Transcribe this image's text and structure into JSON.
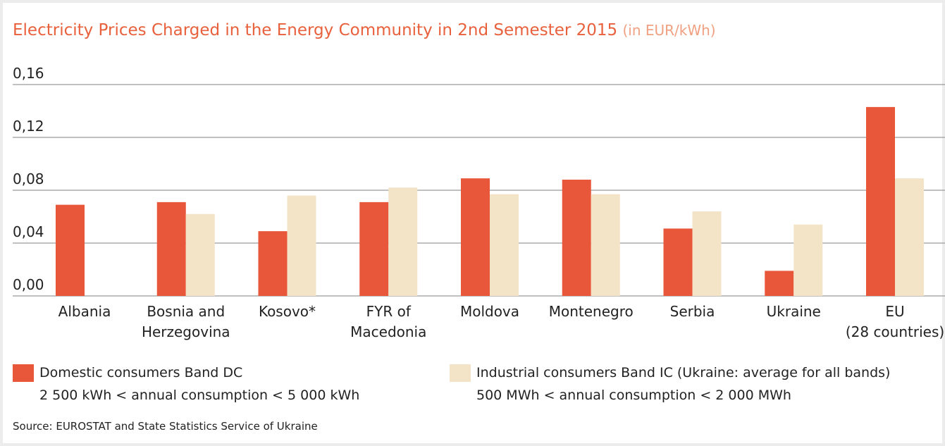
{
  "chart_data": {
    "type": "bar",
    "title": "Electricity Prices Charged in the Energy Community in 2nd Semester 2015",
    "subtitle": "(in EUR/kWh)",
    "categories": [
      "Albania",
      "Bosnia and\nHerzegovina",
      "Kosovo*",
      "FYR of\nMacedonia",
      "Moldova",
      "Montenegro",
      "Serbia",
      "Ukraine",
      "EU\n(28 countries)"
    ],
    "series": [
      {
        "name": "Domestic consumers Band DC",
        "note": "2 500 kWh < annual consumption < 5 000 kWh",
        "color": "#e8573a",
        "values": [
          0.069,
          0.071,
          0.049,
          0.071,
          0.089,
          0.088,
          0.051,
          0.019,
          0.143
        ]
      },
      {
        "name": "Industrial consumers Band IC (Ukraine: average for all bands)",
        "note": "500 MWh < annual consumption < 2 000 MWh",
        "color": "#f3e4c8",
        "values": [
          null,
          0.062,
          0.076,
          0.082,
          0.077,
          0.077,
          0.064,
          0.054,
          0.089
        ]
      }
    ],
    "ylim": [
      0,
      0.16
    ],
    "yticks": [
      {
        "value": 0,
        "label": "0,00"
      },
      {
        "value": 0.04,
        "label": "0,04"
      },
      {
        "value": 0.08,
        "label": "0,08"
      },
      {
        "value": 0.12,
        "label": "0,12"
      },
      {
        "value": 0.16,
        "label": "0,16"
      }
    ],
    "grid": true,
    "source": "Source: EUROSTAT and State Statistics Service of Ukraine"
  }
}
